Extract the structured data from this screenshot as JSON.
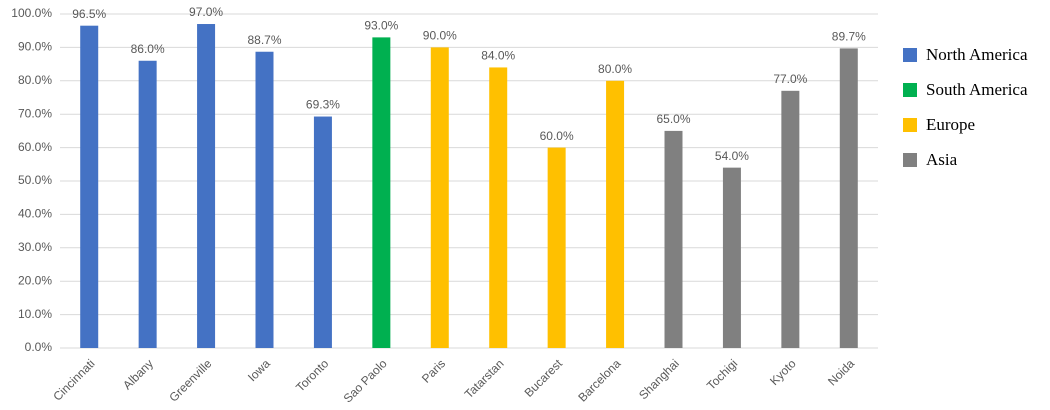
{
  "chart_data": {
    "type": "bar",
    "categories": [
      "Cincinnati",
      "Albany",
      "Greenville",
      "Iowa",
      "Toronto",
      "Sao Paolo",
      "Paris",
      "Tatarstan",
      "Bucarest",
      "Barcelona",
      "Shanghai",
      "Tochigi",
      "Kyoto",
      "Noida"
    ],
    "series": [
      {
        "name": "North America",
        "color": "#4472c4",
        "values": [
          96.5,
          86.0,
          97.0,
          88.7,
          69.3,
          null,
          null,
          null,
          null,
          null,
          null,
          null,
          null,
          null
        ],
        "value_labels": [
          "96.5%",
          "86.0%",
          "97.0%",
          "88.7%",
          "69.3%",
          null,
          null,
          null,
          null,
          null,
          null,
          null,
          null,
          null
        ]
      },
      {
        "name": "South America",
        "color": "#00b050",
        "values": [
          null,
          null,
          null,
          null,
          null,
          93.0,
          null,
          null,
          null,
          null,
          null,
          null,
          null,
          null
        ],
        "value_labels": [
          null,
          null,
          null,
          null,
          null,
          "93.0%",
          null,
          null,
          null,
          null,
          null,
          null,
          null,
          null
        ]
      },
      {
        "name": "Europe",
        "color": "#ffc000",
        "values": [
          null,
          null,
          null,
          null,
          null,
          null,
          90.0,
          84.0,
          60.0,
          80.0,
          null,
          null,
          null,
          null
        ],
        "value_labels": [
          null,
          null,
          null,
          null,
          null,
          null,
          "90.0%",
          "84.0%",
          "60.0%",
          "80.0%",
          null,
          null,
          null,
          null
        ]
      },
      {
        "name": "Asia",
        "color": "#808080",
        "values": [
          null,
          null,
          null,
          null,
          null,
          null,
          null,
          null,
          null,
          null,
          65.0,
          54.0,
          77.0,
          89.7
        ],
        "value_labels": [
          null,
          null,
          null,
          null,
          null,
          null,
          null,
          null,
          null,
          null,
          "65.0%",
          "54.0%",
          "77.0%",
          "89.7%"
        ]
      }
    ],
    "ylim": [
      0,
      100
    ],
    "yticks": [
      {
        "value": 0,
        "label": "0.0%"
      },
      {
        "value": 10,
        "label": "10.0%"
      },
      {
        "value": 20,
        "label": "20.0%"
      },
      {
        "value": 30,
        "label": "30.0%"
      },
      {
        "value": 40,
        "label": "40.0%"
      },
      {
        "value": 50,
        "label": "50.0%"
      },
      {
        "value": 60,
        "label": "60.0%"
      },
      {
        "value": 70,
        "label": "70.0%"
      },
      {
        "value": 80,
        "label": "80.0%"
      },
      {
        "value": 90,
        "label": "90.0%"
      },
      {
        "value": 100,
        "label": "100.0%"
      }
    ],
    "grid": true,
    "legend": "right"
  }
}
